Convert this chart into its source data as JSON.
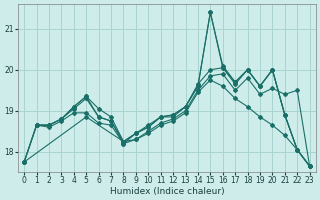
{
  "xlabel": "Humidex (Indice chaleur)",
  "bg_color": "#ceecea",
  "grid_color": "#a8d4d0",
  "line_color": "#1a7068",
  "xlim": [
    -0.5,
    23.5
  ],
  "ylim": [
    17.5,
    21.6
  ],
  "yticks": [
    18,
    19,
    20,
    21
  ],
  "xticks": [
    0,
    1,
    2,
    3,
    4,
    5,
    6,
    7,
    8,
    9,
    10,
    11,
    12,
    13,
    14,
    15,
    16,
    17,
    18,
    19,
    20,
    21,
    22,
    23
  ],
  "lines": [
    {
      "x": [
        0,
        1,
        2,
        3,
        4,
        5,
        6,
        7,
        8,
        9,
        10,
        11,
        12,
        13,
        14,
        15,
        16,
        17,
        18,
        19,
        20,
        21,
        22,
        23
      ],
      "y": [
        17.75,
        18.65,
        18.65,
        18.8,
        19.1,
        19.35,
        18.85,
        18.75,
        18.2,
        18.45,
        18.6,
        18.85,
        18.85,
        19.1,
        19.6,
        21.4,
        20.05,
        19.7,
        20.0,
        19.6,
        20.0,
        18.9,
        18.05,
        17.65
      ]
    },
    {
      "x": [
        0,
        1,
        2,
        3,
        4,
        5,
        6,
        7,
        8,
        9,
        10,
        11,
        12,
        13,
        14,
        15,
        16,
        17,
        18,
        19,
        20,
        21,
        22,
        23
      ],
      "y": [
        17.75,
        18.65,
        18.65,
        18.8,
        19.05,
        19.3,
        18.85,
        18.75,
        18.25,
        18.45,
        18.6,
        18.85,
        18.9,
        19.1,
        19.65,
        20.0,
        20.05,
        19.65,
        20.0,
        19.6,
        20.0,
        18.9,
        18.05,
        17.65
      ]
    },
    {
      "x": [
        0,
        1,
        2,
        3,
        4,
        5,
        6,
        7,
        8,
        9,
        10,
        11,
        12,
        13,
        14,
        15,
        16,
        17,
        18,
        19,
        20,
        21,
        22,
        23
      ],
      "y": [
        17.75,
        18.65,
        18.6,
        18.75,
        18.95,
        18.95,
        18.7,
        18.65,
        18.2,
        18.3,
        18.5,
        18.7,
        18.8,
        19.0,
        19.5,
        19.85,
        19.9,
        19.5,
        19.8,
        19.4,
        19.55,
        19.4,
        19.5,
        17.65
      ]
    },
    {
      "x": [
        1,
        2,
        3,
        4,
        5,
        6,
        7,
        8,
        9,
        10,
        11,
        12,
        13,
        14,
        15,
        16,
        17,
        18,
        19,
        20,
        21,
        22,
        23
      ],
      "y": [
        18.65,
        18.65,
        18.8,
        19.1,
        19.35,
        19.05,
        18.85,
        18.25,
        18.45,
        18.65,
        18.85,
        18.9,
        19.1,
        19.6,
        21.4,
        20.1,
        19.7,
        20.0,
        19.6,
        20.0,
        18.9,
        18.05,
        17.65
      ]
    },
    {
      "x": [
        0,
        5,
        8,
        9,
        10,
        11,
        12,
        13,
        14,
        15,
        16,
        17,
        18,
        19,
        20,
        21,
        22,
        23
      ],
      "y": [
        17.75,
        18.85,
        18.25,
        18.3,
        18.45,
        18.65,
        18.75,
        18.95,
        19.45,
        19.75,
        19.6,
        19.3,
        19.1,
        18.85,
        18.65,
        18.4,
        18.05,
        17.65
      ]
    }
  ]
}
